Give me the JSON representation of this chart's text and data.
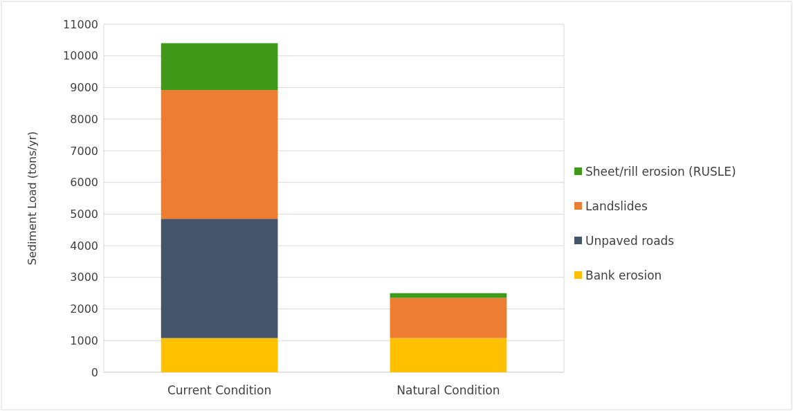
{
  "chart_data": {
    "type": "bar",
    "stacked": true,
    "ylabel": "Sediment Load (tons/yr)",
    "categories": [
      "Current Condition",
      "Natural Condition"
    ],
    "series": [
      {
        "name": "Bank erosion",
        "color": "#ffc000",
        "values": [
          1080,
          1080
        ]
      },
      {
        "name": "Unpaved roads",
        "color": "#44546a",
        "values": [
          3770,
          0
        ]
      },
      {
        "name": "Landslides",
        "color": "#ed7d31",
        "values": [
          4070,
          1270
        ]
      },
      {
        "name": "Sheet/rill erosion (RUSLE)",
        "color": "#3f9a1a",
        "values": [
          1480,
          150
        ]
      }
    ],
    "ylim": [
      0,
      11000
    ],
    "yticks": [
      0,
      1000,
      2000,
      3000,
      4000,
      5000,
      6000,
      7000,
      8000,
      9000,
      10000,
      11000
    ],
    "grid": "y",
    "legend": "right"
  }
}
